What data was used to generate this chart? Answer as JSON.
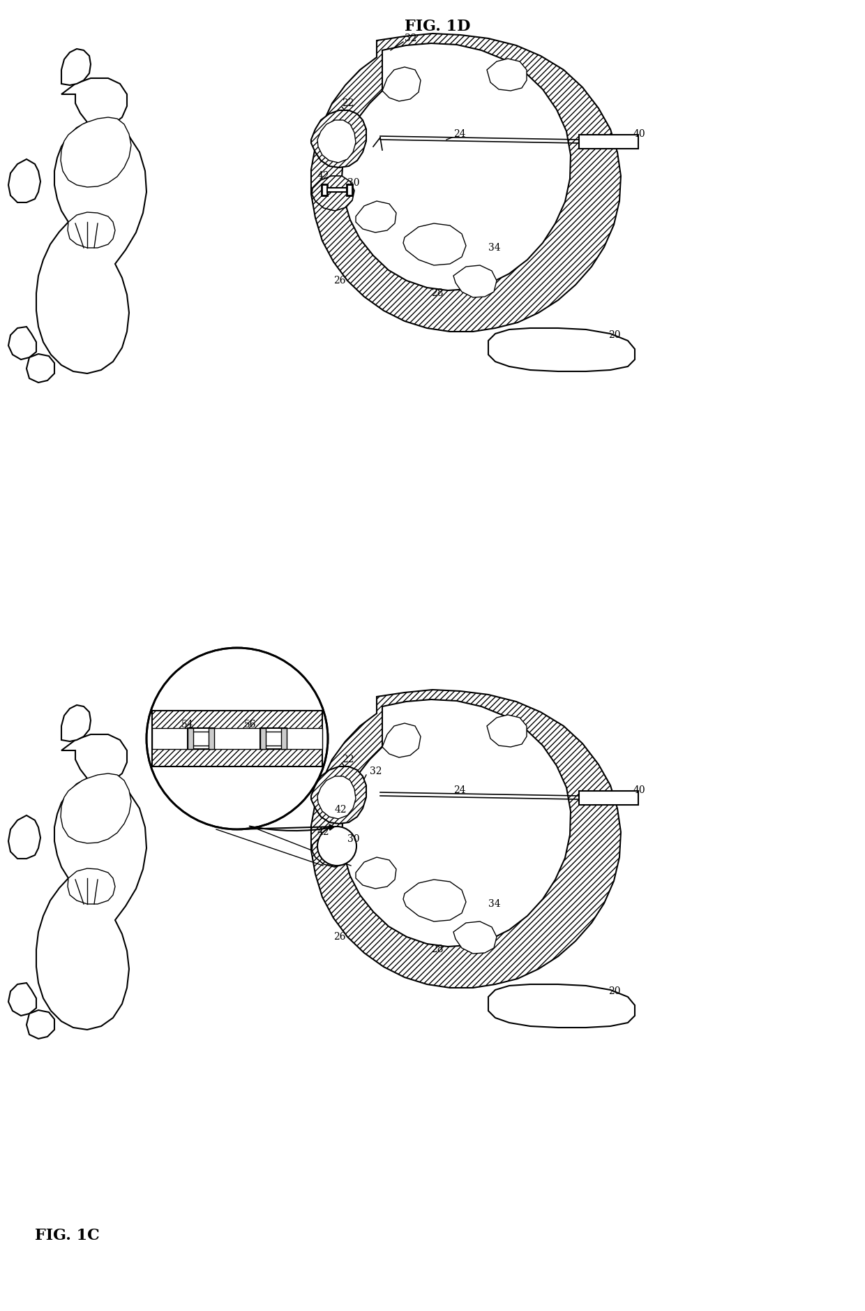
{
  "background_color": "#ffffff",
  "fig_width": 12.4,
  "fig_height": 18.78,
  "dpi": 100,
  "fig1c_label": "FIG. 1C",
  "fig1d_label": "FIG. 1D",
  "label_fontsize": 16,
  "ref_fontsize": 10,
  "hatch_style": "////",
  "line_color": "#000000",
  "line_width": 1.5,
  "hatch_linewidth": 0.5
}
